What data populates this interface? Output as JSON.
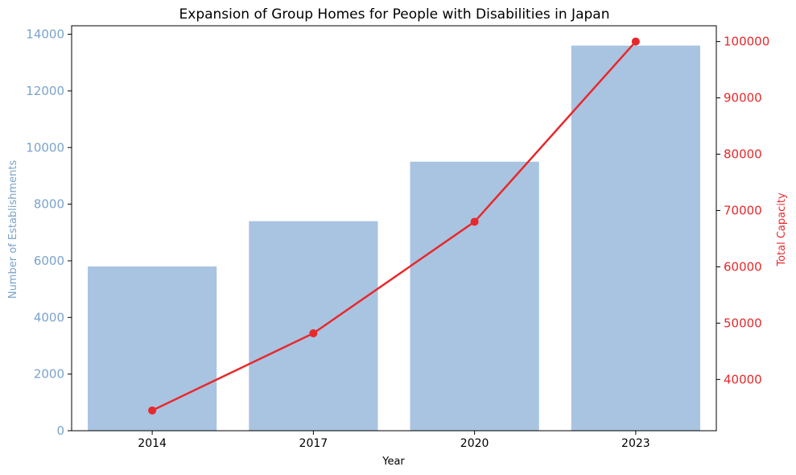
{
  "chart_data": {
    "type": "bar",
    "title": "Expansion of Group Homes for People with Disabilities in Japan",
    "xlabel": "Year",
    "ylabel": "Number of Establishments",
    "y2label": "Total Capacity",
    "categories": [
      "2014",
      "2017",
      "2020",
      "2023"
    ],
    "series": [
      {
        "name": "Number of Establishments",
        "type": "bar",
        "axis": "left",
        "color": "#a9c4e1",
        "values": [
          5800,
          7400,
          9500,
          13600
        ]
      },
      {
        "name": "Total Capacity",
        "type": "line",
        "axis": "right",
        "color": "#e8282b",
        "values": [
          34500,
          48200,
          68000,
          100000
        ]
      }
    ],
    "ylim": [
      0,
      14300
    ],
    "y2lim": [
      30900,
      102800
    ],
    "yticks": [
      0,
      2000,
      4000,
      6000,
      8000,
      10000,
      12000,
      14000
    ],
    "y2ticks": [
      40000,
      50000,
      60000,
      70000,
      80000,
      90000,
      100000
    ],
    "left_axis_color": "#7ba3cc",
    "right_axis_color": "#e8282b",
    "grid": false,
    "legend": "none"
  }
}
